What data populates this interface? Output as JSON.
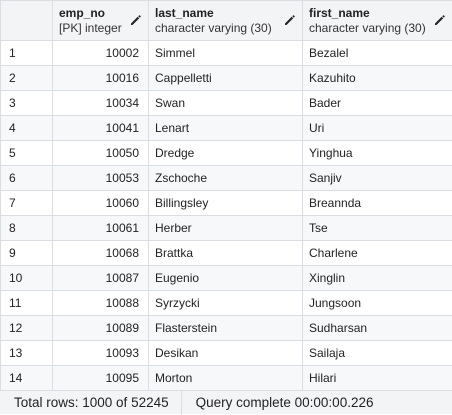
{
  "columns": [
    {
      "name": "emp_no",
      "type": "[PK] integer"
    },
    {
      "name": "last_name",
      "type": "character varying (30)"
    },
    {
      "name": "first_name",
      "type": "character varying (30)"
    }
  ],
  "rows": [
    {
      "n": "1",
      "emp_no": "10002",
      "last_name": "Simmel",
      "first_name": "Bezalel"
    },
    {
      "n": "2",
      "emp_no": "10016",
      "last_name": "Cappelletti",
      "first_name": "Kazuhito"
    },
    {
      "n": "3",
      "emp_no": "10034",
      "last_name": "Swan",
      "first_name": "Bader"
    },
    {
      "n": "4",
      "emp_no": "10041",
      "last_name": "Lenart",
      "first_name": "Uri"
    },
    {
      "n": "5",
      "emp_no": "10050",
      "last_name": "Dredge",
      "first_name": "Yinghua"
    },
    {
      "n": "6",
      "emp_no": "10053",
      "last_name": "Zschoche",
      "first_name": "Sanjiv"
    },
    {
      "n": "7",
      "emp_no": "10060",
      "last_name": "Billingsley",
      "first_name": "Breannda"
    },
    {
      "n": "8",
      "emp_no": "10061",
      "last_name": "Herber",
      "first_name": "Tse"
    },
    {
      "n": "9",
      "emp_no": "10068",
      "last_name": "Brattka",
      "first_name": "Charlene"
    },
    {
      "n": "10",
      "emp_no": "10087",
      "last_name": "Eugenio",
      "first_name": "Xinglin"
    },
    {
      "n": "11",
      "emp_no": "10088",
      "last_name": "Syrzycki",
      "first_name": "Jungsoon"
    },
    {
      "n": "12",
      "emp_no": "10089",
      "last_name": "Flasterstein",
      "first_name": "Sudharsan"
    },
    {
      "n": "13",
      "emp_no": "10093",
      "last_name": "Desikan",
      "first_name": "Sailaja"
    },
    {
      "n": "14",
      "emp_no": "10095",
      "last_name": "Morton",
      "first_name": "Hilari"
    }
  ],
  "status": {
    "total_rows": "Total rows: 1000 of 52245",
    "query": "Query complete 00:00:00.226"
  },
  "icons": {
    "edit": "pencil-icon"
  }
}
